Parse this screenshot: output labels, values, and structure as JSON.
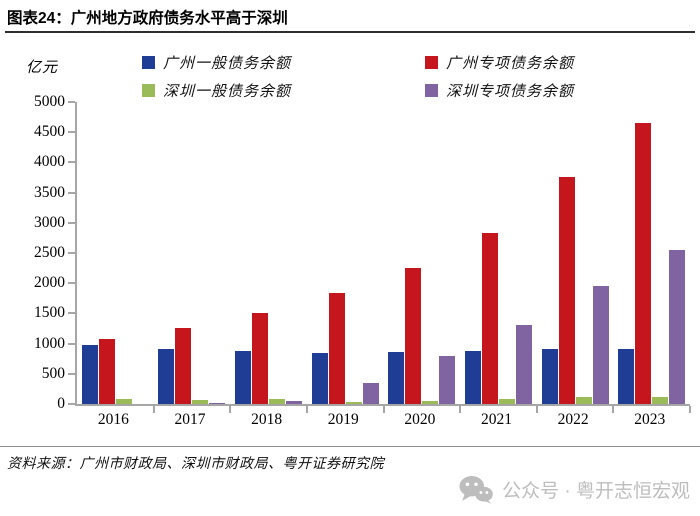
{
  "header": {
    "title": "图表24：广州地方政府债务水平高于深圳"
  },
  "chart_data": {
    "type": "bar",
    "title": "图表24：广州地方政府债务水平高于深圳",
    "unit_label": "亿元",
    "xlabel": "",
    "ylabel": "亿元",
    "ylim": [
      0,
      5000
    ],
    "ytick_step": 500,
    "grid": false,
    "legend_position": "top",
    "categories": [
      "2016",
      "2017",
      "2018",
      "2019",
      "2020",
      "2021",
      "2022",
      "2023"
    ],
    "series": [
      {
        "name": "广州一般债务余额",
        "color": "#1f3d94",
        "values": [
          980,
          915,
          885,
          850,
          865,
          885,
          905,
          905
        ]
      },
      {
        "name": "广州专项债务余额",
        "color": "#c5161d",
        "values": [
          1080,
          1265,
          1510,
          1835,
          2245,
          2830,
          3760,
          4650
        ]
      },
      {
        "name": "深圳一般债务余额",
        "color": "#9bbb59",
        "values": [
          90,
          70,
          75,
          40,
          50,
          90,
          115,
          120
        ]
      },
      {
        "name": "深圳专项债务余额",
        "color": "#8064a2",
        "values": [
          0,
          15,
          45,
          340,
          790,
          1300,
          1960,
          2550
        ]
      }
    ],
    "axis_color": "#a6a6a6"
  },
  "footer": {
    "source": "资料来源：广州市财政局、深圳市财政局、粤开证券研究院",
    "watermark": "公众号 · 粤开志恒宏观",
    "watermark_icon": "wechat-icon"
  }
}
